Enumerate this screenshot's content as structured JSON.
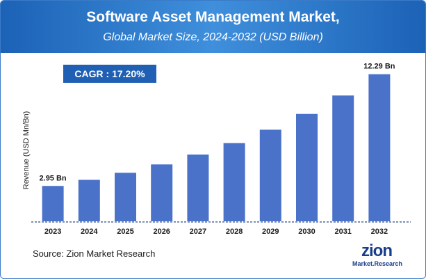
{
  "chart_data": {
    "type": "bar",
    "title": "Software Asset Management Market,",
    "subtitle": "Global Market Size, 2024-2032 (USD Billion)",
    "ylabel": "Revenue (USD Mn/Bn)",
    "xlabel": "",
    "categories": [
      "2023",
      "2024",
      "2025",
      "2026",
      "2027",
      "2028",
      "2029",
      "2030",
      "2031",
      "2032"
    ],
    "values": [
      2.95,
      3.46,
      4.05,
      4.75,
      5.57,
      6.53,
      7.65,
      8.97,
      10.51,
      12.29
    ],
    "data_labels": [
      {
        "index": 0,
        "text": "2.95 Bn"
      },
      {
        "index": 9,
        "text": "12.29 Bn"
      }
    ],
    "ylim": [
      0,
      13.2
    ],
    "grid": false,
    "bar_color": "#4a72c9"
  },
  "cagr": {
    "text": "CAGR : 17.20%"
  },
  "source": "Source: Zion Market Research",
  "logo": {
    "main": "zion",
    "sub": "Market.Research"
  },
  "colors": {
    "header": "#1c62b6",
    "cagr_bg": "#1f5fb4",
    "bars": "#4a72c9"
  }
}
